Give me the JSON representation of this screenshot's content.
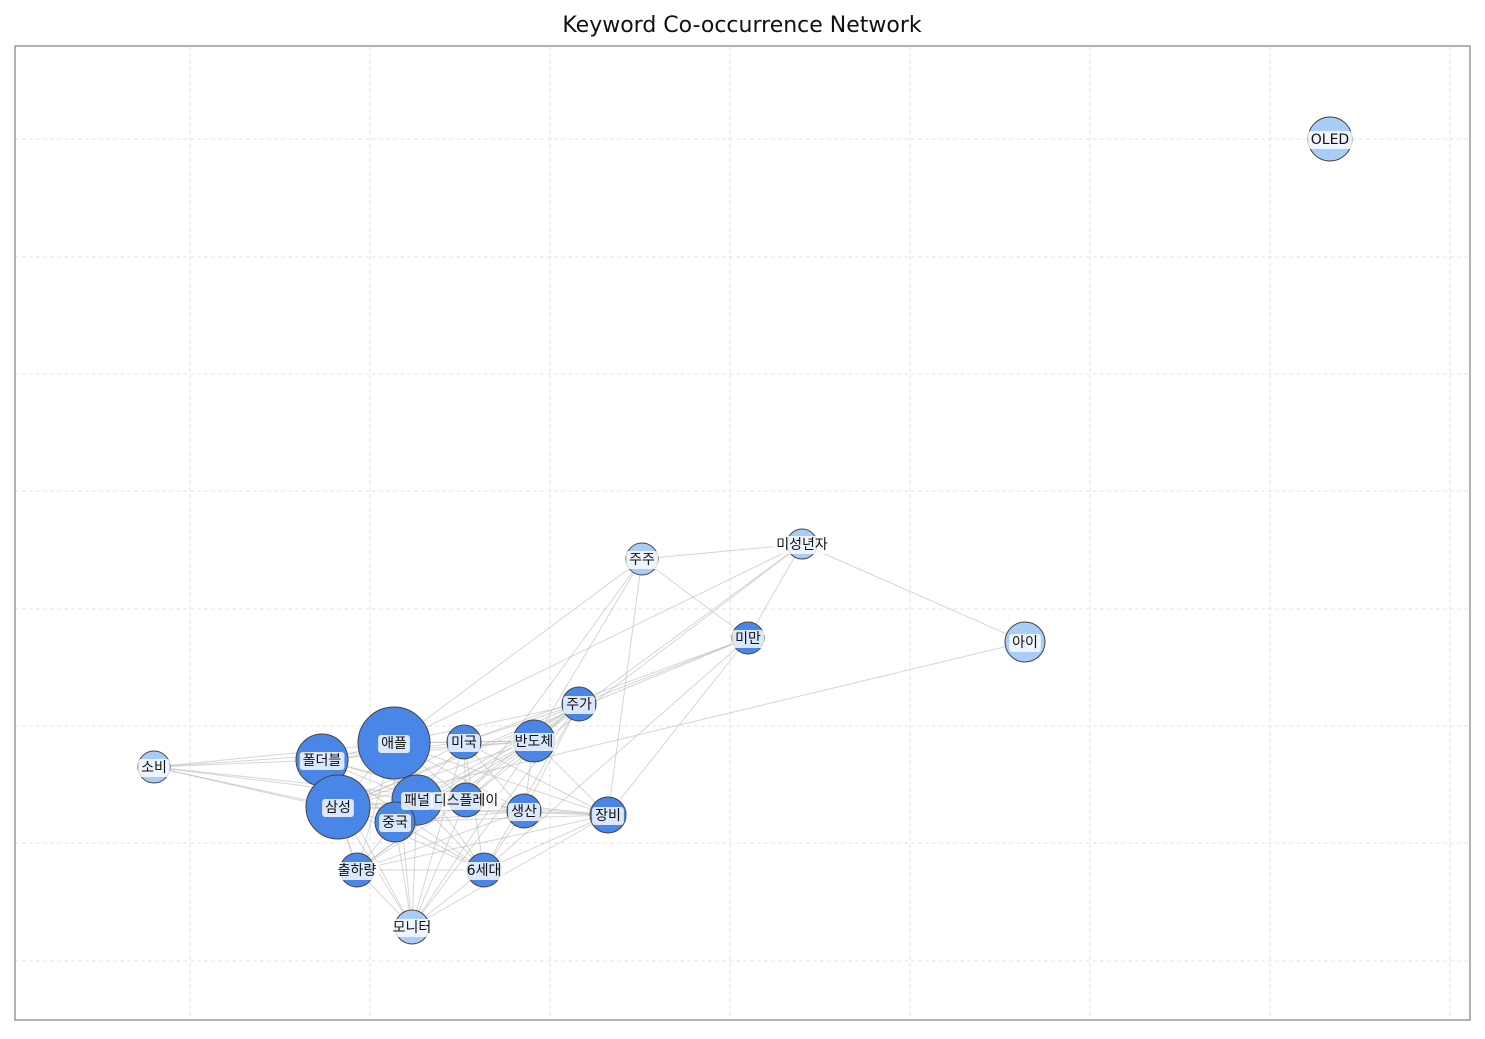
{
  "title": "Keyword Co-occurrence Network",
  "nodes": [
    {
      "label": "OLED"
    },
    {
      "label": "주주"
    },
    {
      "label": "미성년자"
    },
    {
      "label": "미만"
    },
    {
      "label": "아이"
    },
    {
      "label": "주가"
    },
    {
      "label": "애플"
    },
    {
      "label": "미국"
    },
    {
      "label": "반도체"
    },
    {
      "label": "소비"
    },
    {
      "label": "폴더블"
    },
    {
      "label": "삼성"
    },
    {
      "label": "패널"
    },
    {
      "label": "디스플레이"
    },
    {
      "label": "생산"
    },
    {
      "label": "장비"
    },
    {
      "label": "중국"
    },
    {
      "label": "출하량"
    },
    {
      "label": "6세대"
    },
    {
      "label": "모니터"
    }
  ]
}
